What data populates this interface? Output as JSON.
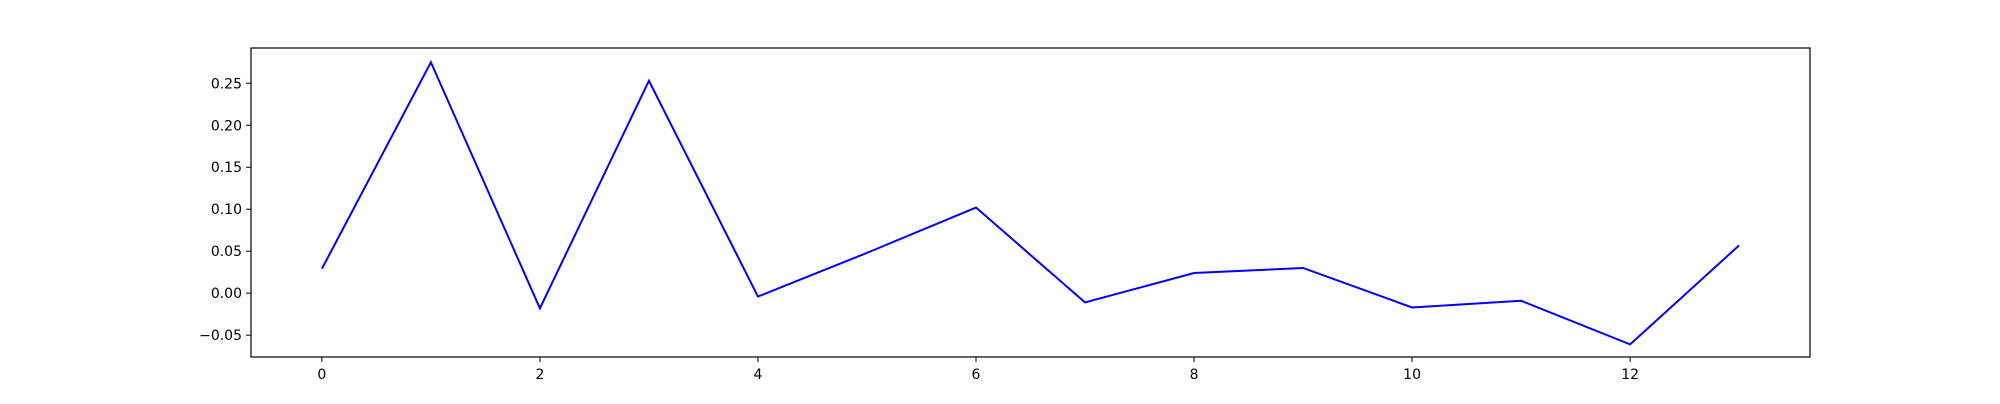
{
  "chart_data": {
    "type": "line",
    "title": "",
    "xlabel": "",
    "ylabel": "",
    "x": [
      0,
      1,
      2,
      3,
      4,
      5,
      6,
      7,
      8,
      9,
      10,
      11,
      12,
      13
    ],
    "series": [
      {
        "values": [
          0.029,
          0.275,
          -0.018,
          0.253,
          -0.004,
          0.048,
          0.102,
          -0.011,
          0.024,
          0.03,
          -0.017,
          -0.009,
          -0.061,
          0.057
        ]
      }
    ],
    "xlim": [
      -0.65,
      13.65
    ],
    "ylim": [
      -0.076,
      0.292
    ],
    "xticks": [
      0,
      2,
      4,
      6,
      8,
      10,
      12
    ],
    "xtick_labels": [
      "0",
      "2",
      "4",
      "6",
      "8",
      "10",
      "12"
    ],
    "yticks": [
      -0.05,
      0.0,
      0.05,
      0.1,
      0.15,
      0.2,
      0.25
    ],
    "ytick_labels": [
      "−0.05",
      "0.00",
      "0.05",
      "0.10",
      "0.15",
      "0.20",
      "0.25"
    ],
    "grid": false,
    "legend": "none",
    "colors": {
      "line": "#0000ff",
      "axes": "#000000",
      "background": "#ffffff"
    }
  }
}
